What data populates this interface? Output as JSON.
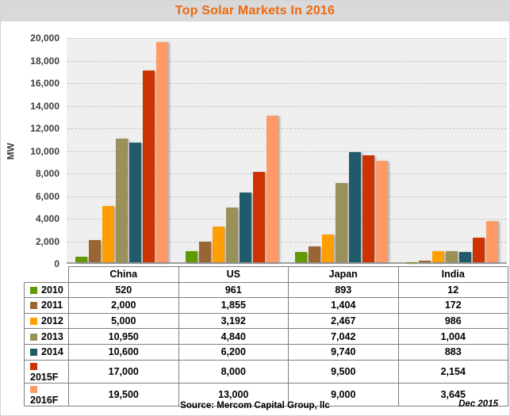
{
  "title": "Top Solar Markets In 2016",
  "title_color": "#EE690D",
  "footer": {
    "source": "Source: Mercom Capital Group, llc",
    "date": "Dec 2015"
  },
  "chart_data": {
    "type": "bar",
    "title": "Top Solar Markets In 2016",
    "ylabel": "MW",
    "ylim": [
      0,
      20000
    ],
    "ytick_step": 2000,
    "yticks": [
      "0",
      "2,000",
      "4,000",
      "6,000",
      "8,000",
      "10,000",
      "12,000",
      "14,000",
      "16,000",
      "18,000",
      "20,000"
    ],
    "grid": "horizontal-dashed",
    "legend_position": "table-rows-left",
    "plot_bg": "#EFEFEF",
    "categories": [
      "China",
      "US",
      "Japan",
      "India"
    ],
    "series": [
      {
        "name": "2010",
        "color": "#609A00",
        "values": [
          520,
          961,
          893,
          12
        ],
        "display": [
          "520",
          "961",
          "893",
          "12"
        ]
      },
      {
        "name": "2011",
        "color": "#996633",
        "values": [
          2000,
          1855,
          1404,
          172
        ],
        "display": [
          "2,000",
          "1,855",
          "1,404",
          "172"
        ]
      },
      {
        "name": "2012",
        "color": "#FF9E00",
        "values": [
          5000,
          3192,
          2467,
          986
        ],
        "display": [
          "5,000",
          "3,192",
          "2,467",
          "986"
        ]
      },
      {
        "name": "2013",
        "color": "#98915A",
        "values": [
          10950,
          4840,
          7042,
          1004
        ],
        "display": [
          "10,950",
          "4,840",
          "7,042",
          "1,004"
        ]
      },
      {
        "name": "2014",
        "color": "#215A6B",
        "values": [
          10600,
          6200,
          9740,
          883
        ],
        "display": [
          "10,600",
          "6,200",
          "9,740",
          "883"
        ]
      },
      {
        "name": "2015F",
        "color": "#CC3300",
        "values": [
          17000,
          8000,
          9500,
          2154
        ],
        "display": [
          "17,000",
          "8,000",
          "9,500",
          "2,154"
        ]
      },
      {
        "name": "2016F",
        "color": "#FF9A66",
        "values": [
          19500,
          13000,
          9000,
          3645
        ],
        "display": [
          "19,500",
          "13,000",
          "9,000",
          "3,645"
        ]
      }
    ]
  }
}
